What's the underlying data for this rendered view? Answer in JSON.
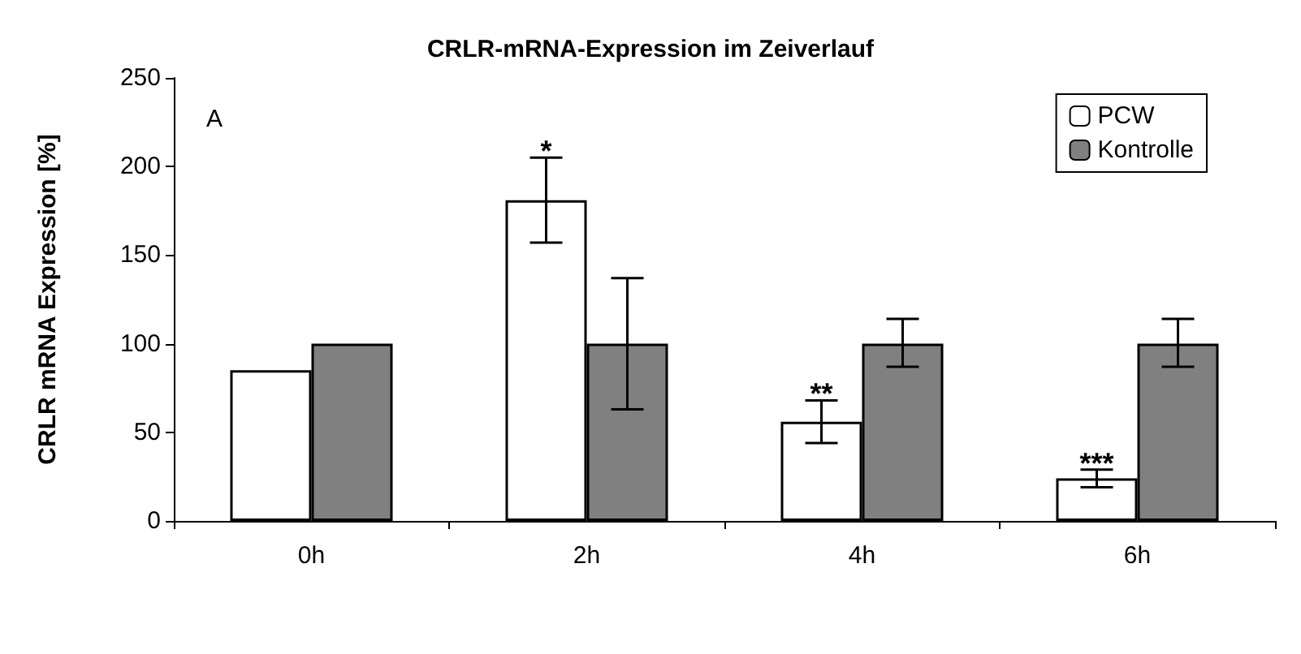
{
  "chart_data": {
    "type": "bar",
    "title": "CRLR-mRNA-Expression im Zeiverlauf",
    "ylabel": "CRLR mRNA Expression [%]",
    "categories": [
      "0h",
      "2h",
      "4h",
      "6h"
    ],
    "series": [
      {
        "name": "PCW",
        "color": "#ffffff",
        "values": [
          85,
          181,
          56,
          24
        ],
        "errors": [
          null,
          [
            157,
            205
          ],
          [
            44,
            68
          ],
          [
            19,
            29
          ]
        ]
      },
      {
        "name": "Kontrolle",
        "color": "#808080",
        "values": [
          100,
          100,
          100,
          100
        ],
        "errors": [
          null,
          [
            63,
            137
          ],
          [
            87,
            114
          ],
          [
            87,
            114
          ]
        ]
      }
    ],
    "ylim": [
      0,
      250
    ],
    "yticks": [
      0,
      50,
      100,
      150,
      200,
      250
    ],
    "grid": false,
    "legend": "top right",
    "annotations": [
      "A",
      {
        "text": "*",
        "x": "2h",
        "y": 181
      },
      {
        "text": "**",
        "x": "4h",
        "y": 56
      },
      {
        "text": "***",
        "x": "6h",
        "y": 24
      }
    ]
  }
}
